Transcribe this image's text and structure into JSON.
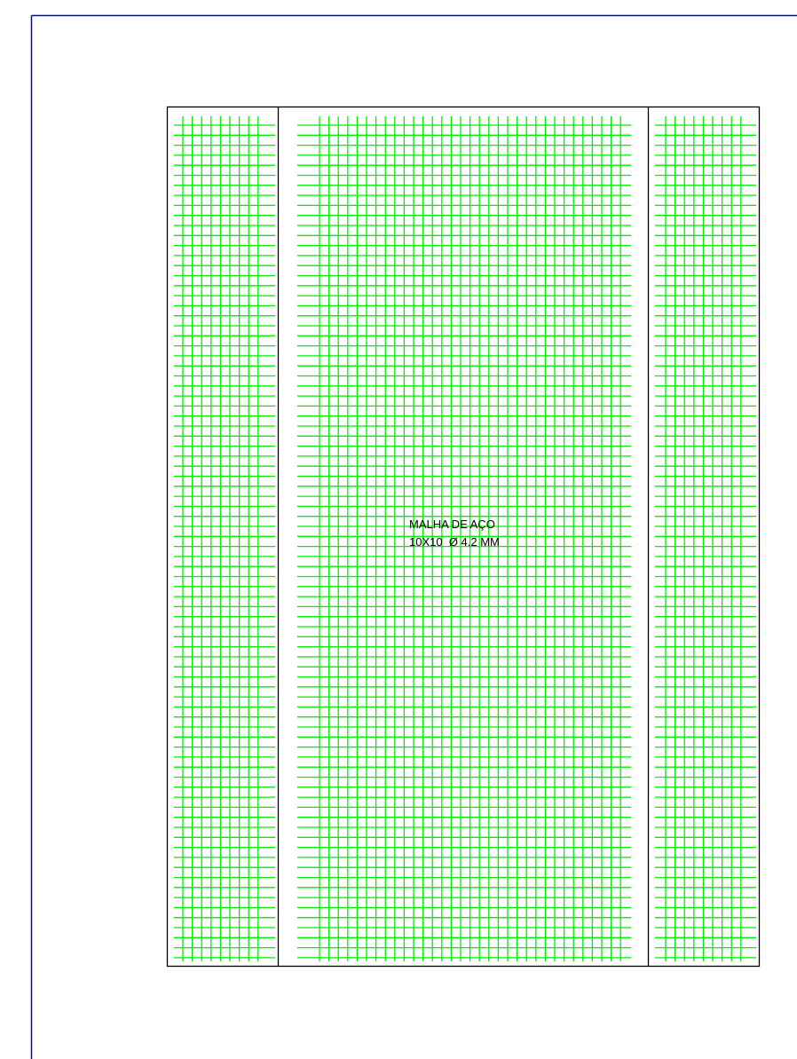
{
  "drawing": {
    "label_line1": "MALHA DE AÇO",
    "label_line2": "10X10  Ø 4.2 MM"
  }
}
